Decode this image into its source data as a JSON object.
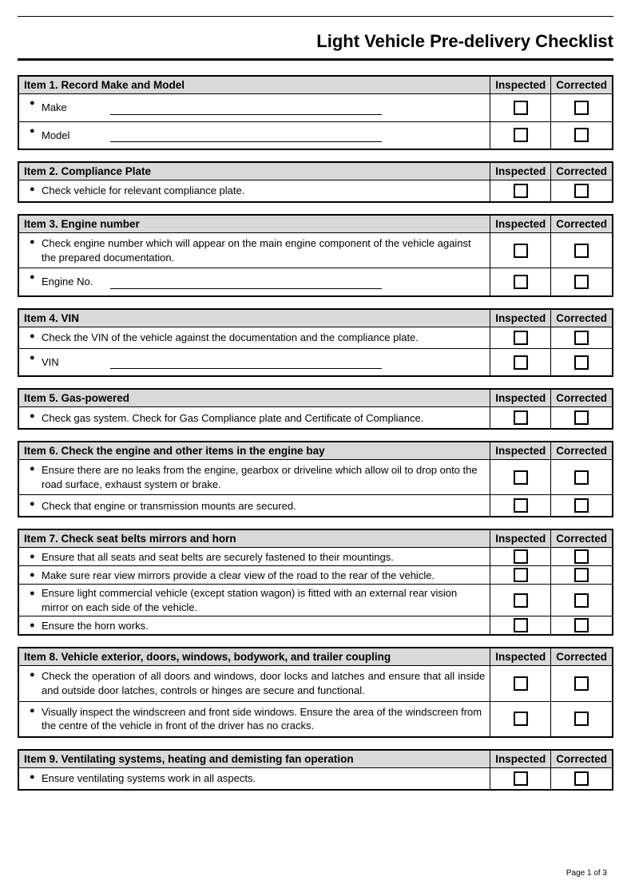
{
  "page": {
    "title": "Light Vehicle Pre-delivery Checklist",
    "footer": "Page 1 of 3",
    "col_inspected": "Inspected",
    "col_corrected": "Corrected"
  },
  "items": [
    {
      "title": "Item 1. Record Make and Model",
      "rows": [
        {
          "label": "Make",
          "blank": true
        },
        {
          "label": "Model",
          "blank": true
        }
      ]
    },
    {
      "title": "Item 2. Compliance Plate",
      "rows": [
        {
          "text": "Check vehicle for relevant compliance plate."
        }
      ]
    },
    {
      "title": "Item 3. Engine number",
      "rows": [
        {
          "text": "Check engine number which will appear on the main engine component of the vehicle against the prepared documentation."
        },
        {
          "label": "Engine No.",
          "blank": true
        }
      ]
    },
    {
      "title": "Item 4. VIN",
      "rows": [
        {
          "text": "Check the VIN of the vehicle against the documentation and the compliance plate."
        },
        {
          "label": "VIN",
          "blank": true
        }
      ]
    },
    {
      "title": "Item 5. Gas-powered",
      "rows": [
        {
          "text": "Check gas system. Check for Gas Compliance plate and Certificate of Compliance."
        }
      ]
    },
    {
      "title": "Item 6. Check the engine and other items in the engine bay",
      "rows": [
        {
          "text": "Ensure there are no leaks from the engine, gearbox or driveline which allow oil to drop onto the road surface, exhaust system or brake."
        },
        {
          "text": "Check that engine or transmission mounts are secured."
        }
      ]
    },
    {
      "title": "Item 7. Check seat belts mirrors and horn",
      "rows": [
        {
          "text": "Ensure that all seats and seat belts are securely fastened to their mountings."
        },
        {
          "text": "Make sure rear view mirrors provide a clear view of the road to the rear of the vehicle."
        },
        {
          "text": "Ensure light commercial vehicle (except station wagon) is fitted with an external rear vision mirror on each side of the vehicle."
        },
        {
          "text": "Ensure the horn works."
        }
      ]
    },
    {
      "title": "Item 8. Vehicle exterior, doors, windows, bodywork, and trailer coupling",
      "rows": [
        {
          "text": "Check the operation of all doors and windows, door locks and latches and ensure that all inside and outside door latches, controls or hinges are secure and functional.",
          "justify": true
        },
        {
          "text": "Visually inspect the windscreen and front side windows. Ensure the area of the windscreen from the centre of the vehicle in front of the driver has no cracks."
        }
      ]
    },
    {
      "title": "Item 9. Ventilating systems, heating and demisting fan operation",
      "rows": [
        {
          "text": "Ensure ventilating systems work in all aspects."
        }
      ]
    }
  ]
}
